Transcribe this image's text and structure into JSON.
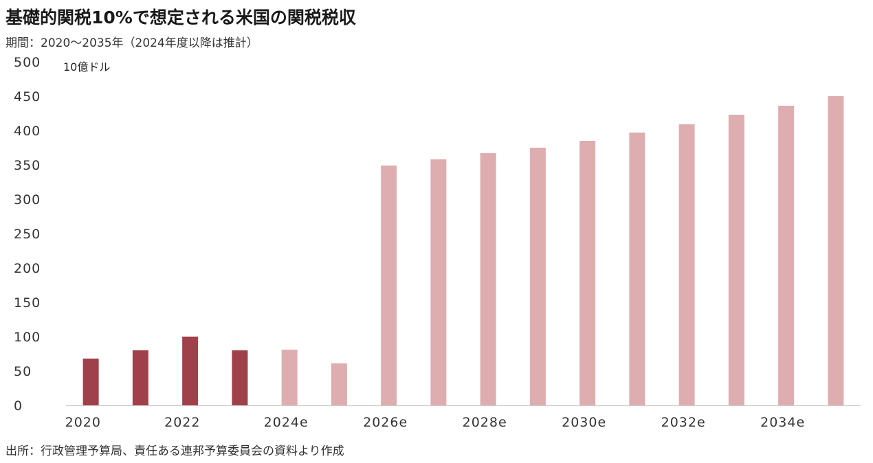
{
  "title": "基礎的関税10%で想定される米国の関税税収",
  "subtitle": "期間：2020～2035年（2024年度以降は推計）",
  "source": "出所：行政管理予算局、責任ある連邦予算委員会の資料より作成",
  "colors": {
    "actual": "#a0404a",
    "estimate": "#deadb0",
    "axis": "#cccccc"
  },
  "chart_data": {
    "type": "bar",
    "ylabel": "10億ドル",
    "ylim": [
      0,
      500
    ],
    "yticks": [
      0,
      50,
      100,
      150,
      200,
      250,
      300,
      350,
      400,
      450,
      500
    ],
    "xtick_labels": [
      "2020",
      "2022",
      "2024e",
      "2026e",
      "2028e",
      "2030e",
      "2032e",
      "2034e"
    ],
    "categories": [
      "2020",
      "2021",
      "2022",
      "2023",
      "2024e",
      "2025e",
      "2026e",
      "2027e",
      "2028e",
      "2029e",
      "2030e",
      "2031e",
      "2032e",
      "2033e",
      "2034e",
      "2035e"
    ],
    "values": [
      68,
      80,
      100,
      80,
      81,
      61,
      349,
      358,
      367,
      375,
      385,
      397,
      409,
      423,
      436,
      450
    ],
    "estimate": [
      false,
      false,
      false,
      false,
      true,
      true,
      true,
      true,
      true,
      true,
      true,
      true,
      true,
      true,
      true,
      true
    ],
    "grid": false,
    "legend": "none"
  }
}
